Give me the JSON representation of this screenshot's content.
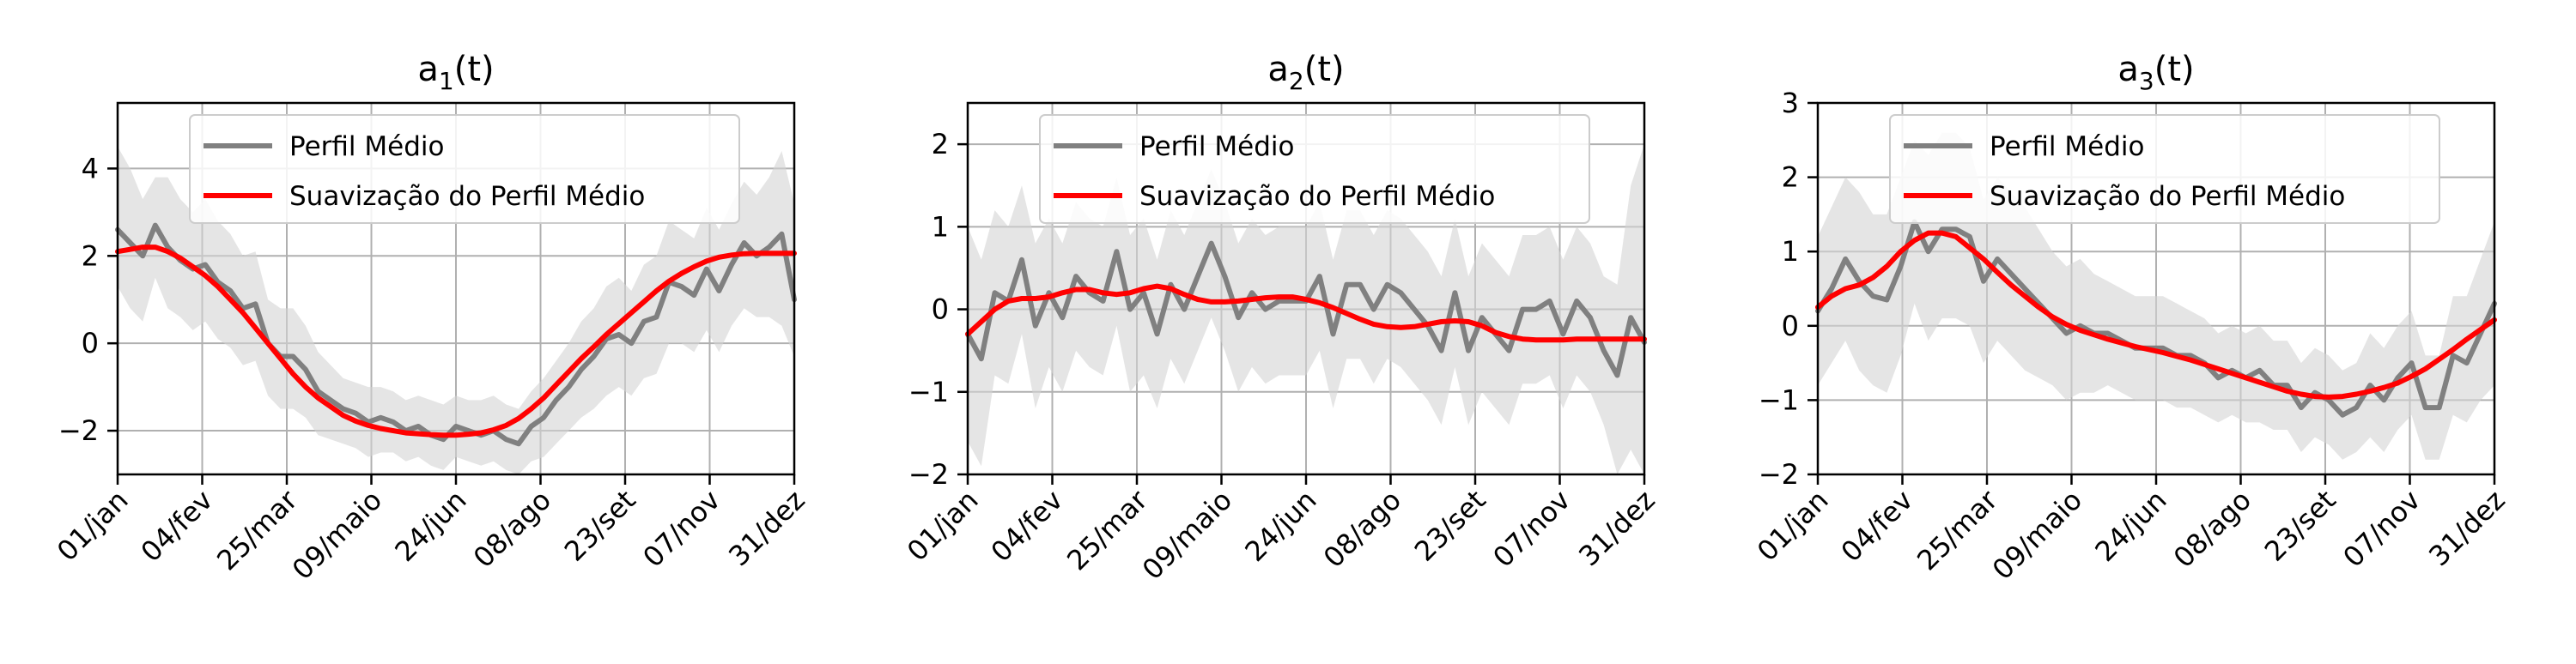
{
  "colors": {
    "mean": "#808080",
    "smooth": "#ff0000",
    "band": "#d3d3d3",
    "grid": "#b0b0b0",
    "legend_border": "#cccccc"
  },
  "chart_data": [
    {
      "type": "line",
      "title": "a",
      "title_sub": "1",
      "title_suffix": "(t)",
      "xticks": [
        "01/jan",
        "04/fev",
        "25/mar",
        "09/maio",
        "24/jun",
        "08/ago",
        "23/set",
        "07/nov",
        "31/dez"
      ],
      "xlim": [
        0,
        8
      ],
      "ylim": [
        -3,
        5.5
      ],
      "yticks": [
        -2,
        0,
        2,
        4
      ],
      "grid": true,
      "legend": "top-center",
      "series": [
        {
          "name": "Perfil Médio",
          "color": "#808080",
          "values": [
            2.6,
            2.3,
            2.0,
            2.7,
            2.2,
            1.9,
            1.7,
            1.8,
            1.4,
            1.2,
            0.8,
            0.9,
            0.0,
            -0.3,
            -0.3,
            -0.6,
            -1.1,
            -1.3,
            -1.5,
            -1.6,
            -1.8,
            -1.7,
            -1.8,
            -2.0,
            -1.9,
            -2.1,
            -2.2,
            -1.9,
            -2.0,
            -2.1,
            -2.0,
            -2.2,
            -2.3,
            -1.9,
            -1.7,
            -1.3,
            -1.0,
            -0.6,
            -0.3,
            0.1,
            0.2,
            0.0,
            0.5,
            0.6,
            1.4,
            1.3,
            1.1,
            1.7,
            1.2,
            1.8,
            2.3,
            2.0,
            2.2,
            2.5,
            1.0
          ]
        },
        {
          "name": "Suavização do Perfil Médio",
          "color": "#ff0000",
          "values": [
            2.1,
            2.15,
            2.2,
            2.2,
            2.1,
            1.95,
            1.75,
            1.55,
            1.3,
            1.0,
            0.7,
            0.35,
            0.0,
            -0.35,
            -0.7,
            -1.0,
            -1.25,
            -1.45,
            -1.65,
            -1.78,
            -1.88,
            -1.95,
            -2.0,
            -2.05,
            -2.07,
            -2.09,
            -2.1,
            -2.1,
            -2.08,
            -2.05,
            -1.98,
            -1.88,
            -1.72,
            -1.5,
            -1.25,
            -0.95,
            -0.65,
            -0.35,
            -0.08,
            0.2,
            0.45,
            0.7,
            0.95,
            1.2,
            1.42,
            1.6,
            1.75,
            1.88,
            1.97,
            2.02,
            2.05,
            2.06,
            2.06,
            2.06,
            2.06
          ]
        }
      ],
      "band_upper": [
        4.5,
        4.0,
        3.3,
        3.8,
        3.8,
        3.3,
        3.0,
        3.3,
        2.8,
        2.5,
        2.0,
        2.1,
        1.0,
        0.8,
        0.8,
        0.4,
        -0.2,
        -0.5,
        -0.8,
        -0.9,
        -1.0,
        -1.0,
        -1.1,
        -1.3,
        -1.2,
        -1.3,
        -1.4,
        -1.2,
        -1.3,
        -1.3,
        -1.2,
        -1.4,
        -1.5,
        -1.1,
        -0.8,
        -0.4,
        0.0,
        0.5,
        0.8,
        1.3,
        1.5,
        1.2,
        1.8,
        2.0,
        2.8,
        2.6,
        2.4,
        3.1,
        2.6,
        3.2,
        3.7,
        3.4,
        3.8,
        4.4,
        3.2
      ],
      "band_lower": [
        1.3,
        0.8,
        0.5,
        1.5,
        0.8,
        0.6,
        0.3,
        0.5,
        0.1,
        -0.1,
        -0.5,
        -0.4,
        -1.2,
        -1.5,
        -1.5,
        -1.7,
        -2.1,
        -2.2,
        -2.3,
        -2.4,
        -2.6,
        -2.5,
        -2.5,
        -2.7,
        -2.6,
        -2.8,
        -2.9,
        -2.6,
        -2.7,
        -2.8,
        -2.7,
        -2.9,
        -3.0,
        -2.7,
        -2.6,
        -2.3,
        -2.0,
        -1.7,
        -1.5,
        -1.2,
        -1.0,
        -1.2,
        -0.8,
        -0.7,
        0.0,
        0.0,
        -0.2,
        0.3,
        -0.2,
        0.4,
        0.8,
        0.6,
        0.6,
        0.4,
        -0.3
      ]
    },
    {
      "type": "line",
      "title": "a",
      "title_sub": "2",
      "title_suffix": "(t)",
      "xticks": [
        "01/jan",
        "04/fev",
        "25/mar",
        "09/maio",
        "24/jun",
        "08/ago",
        "23/set",
        "07/nov",
        "31/dez"
      ],
      "xlim": [
        0,
        8
      ],
      "ylim": [
        -2,
        2.5
      ],
      "yticks": [
        -2,
        -1,
        0,
        1,
        2
      ],
      "grid": true,
      "legend": "top-center",
      "series": [
        {
          "name": "Perfil Médio",
          "color": "#808080",
          "values": [
            -0.3,
            -0.6,
            0.2,
            0.1,
            0.6,
            -0.2,
            0.2,
            -0.1,
            0.4,
            0.2,
            0.1,
            0.7,
            0.0,
            0.2,
            -0.3,
            0.3,
            0.0,
            0.4,
            0.8,
            0.4,
            -0.1,
            0.2,
            0.0,
            0.1,
            0.1,
            0.1,
            0.4,
            -0.3,
            0.3,
            0.3,
            0.0,
            0.3,
            0.2,
            0.0,
            -0.2,
            -0.5,
            0.2,
            -0.5,
            -0.1,
            -0.3,
            -0.5,
            0.0,
            0.0,
            0.1,
            -0.3,
            0.1,
            -0.1,
            -0.5,
            -0.8,
            -0.1,
            -0.4
          ]
        },
        {
          "name": "Suavização do Perfil Médio",
          "color": "#ff0000",
          "values": [
            -0.3,
            -0.15,
            0.0,
            0.1,
            0.13,
            0.13,
            0.15,
            0.2,
            0.24,
            0.24,
            0.2,
            0.18,
            0.2,
            0.25,
            0.28,
            0.25,
            0.18,
            0.12,
            0.09,
            0.09,
            0.1,
            0.12,
            0.14,
            0.15,
            0.15,
            0.12,
            0.08,
            0.02,
            -0.05,
            -0.12,
            -0.18,
            -0.21,
            -0.22,
            -0.21,
            -0.18,
            -0.15,
            -0.14,
            -0.15,
            -0.2,
            -0.28,
            -0.33,
            -0.36,
            -0.37,
            -0.37,
            -0.37,
            -0.36,
            -0.36,
            -0.36,
            -0.36,
            -0.36,
            -0.36
          ]
        }
      ],
      "band_upper": [
        1.0,
        0.6,
        1.2,
        1.0,
        1.5,
        0.8,
        1.1,
        0.8,
        1.3,
        1.1,
        1.0,
        1.6,
        0.9,
        1.1,
        0.6,
        1.2,
        0.9,
        1.3,
        1.7,
        1.3,
        0.8,
        1.1,
        0.9,
        1.0,
        1.0,
        1.0,
        1.3,
        0.6,
        1.2,
        1.2,
        0.9,
        1.2,
        1.1,
        0.9,
        0.7,
        0.4,
        1.1,
        0.4,
        0.8,
        0.6,
        0.4,
        0.9,
        0.9,
        1.0,
        0.6,
        1.0,
        0.8,
        0.4,
        0.3,
        1.5,
        2.0
      ],
      "band_lower": [
        -1.6,
        -1.9,
        -0.8,
        -0.9,
        -0.3,
        -1.2,
        -0.7,
        -1.0,
        -0.5,
        -0.7,
        -0.8,
        -0.2,
        -1.0,
        -0.8,
        -1.2,
        -0.6,
        -0.9,
        -0.5,
        -0.1,
        -0.5,
        -1.0,
        -0.7,
        -0.9,
        -0.8,
        -0.8,
        -0.8,
        -0.5,
        -1.2,
        -0.6,
        -0.6,
        -0.9,
        -0.6,
        -0.7,
        -0.9,
        -1.1,
        -1.4,
        -0.7,
        -1.4,
        -1.0,
        -1.2,
        -1.4,
        -0.9,
        -0.9,
        -0.8,
        -1.2,
        -0.8,
        -1.0,
        -1.4,
        -2.0,
        -1.7,
        -2.0
      ]
    },
    {
      "type": "line",
      "title": "a",
      "title_sub": "3",
      "title_suffix": "(t)",
      "xticks": [
        "01/jan",
        "04/fev",
        "25/mar",
        "09/maio",
        "24/jun",
        "08/ago",
        "23/set",
        "07/nov",
        "31/dez"
      ],
      "xlim": [
        0,
        8
      ],
      "ylim": [
        -2,
        3
      ],
      "yticks": [
        -2,
        -1,
        0,
        1,
        2,
        3
      ],
      "grid": true,
      "legend": "top-center",
      "series": [
        {
          "name": "Perfil Médio",
          "color": "#808080",
          "values": [
            0.2,
            0.5,
            0.9,
            0.6,
            0.4,
            0.35,
            0.8,
            1.4,
            1.0,
            1.3,
            1.3,
            1.2,
            0.6,
            0.9,
            0.7,
            0.5,
            0.3,
            0.1,
            -0.1,
            0.0,
            -0.1,
            -0.1,
            -0.2,
            -0.3,
            -0.3,
            -0.3,
            -0.4,
            -0.4,
            -0.5,
            -0.7,
            -0.6,
            -0.7,
            -0.6,
            -0.8,
            -0.8,
            -1.1,
            -0.9,
            -1.0,
            -1.2,
            -1.1,
            -0.8,
            -1.0,
            -0.7,
            -0.5,
            -1.1,
            -1.1,
            -0.4,
            -0.5,
            -0.1,
            0.3
          ]
        },
        {
          "name": "Suavização do Perfil Médio",
          "color": "#ff0000",
          "values": [
            0.25,
            0.4,
            0.5,
            0.55,
            0.65,
            0.8,
            1.0,
            1.15,
            1.25,
            1.25,
            1.2,
            1.05,
            0.9,
            0.72,
            0.55,
            0.4,
            0.25,
            0.12,
            0.02,
            -0.06,
            -0.12,
            -0.18,
            -0.23,
            -0.28,
            -0.32,
            -0.36,
            -0.41,
            -0.46,
            -0.52,
            -0.58,
            -0.64,
            -0.7,
            -0.76,
            -0.82,
            -0.88,
            -0.92,
            -0.95,
            -0.96,
            -0.95,
            -0.92,
            -0.88,
            -0.83,
            -0.77,
            -0.68,
            -0.58,
            -0.45,
            -0.32,
            -0.18,
            -0.05,
            0.08
          ]
        }
      ],
      "band_upper": [
        1.2,
        1.6,
        2.0,
        1.8,
        1.5,
        1.5,
        2.0,
        2.5,
        2.3,
        2.6,
        2.6,
        2.4,
        1.7,
        2.0,
        1.8,
        1.6,
        1.3,
        1.0,
        0.8,
        0.9,
        0.7,
        0.6,
        0.5,
        0.4,
        0.4,
        0.4,
        0.3,
        0.2,
        0.1,
        -0.1,
        0.0,
        -0.1,
        0.0,
        -0.2,
        -0.2,
        -0.5,
        -0.3,
        -0.4,
        -0.6,
        -0.5,
        -0.1,
        -0.3,
        0.0,
        0.2,
        -0.4,
        -0.4,
        0.4,
        0.4,
        0.9,
        1.4
      ],
      "band_lower": [
        -0.8,
        -0.5,
        -0.2,
        -0.6,
        -0.8,
        -0.9,
        -0.4,
        0.3,
        -0.2,
        0.1,
        0.1,
        0.0,
        -0.5,
        -0.2,
        -0.4,
        -0.6,
        -0.7,
        -0.8,
        -1.0,
        -0.9,
        -0.9,
        -0.8,
        -0.9,
        -1.0,
        -1.0,
        -1.0,
        -1.1,
        -1.1,
        -1.2,
        -1.3,
        -1.2,
        -1.3,
        -1.3,
        -1.4,
        -1.4,
        -1.7,
        -1.5,
        -1.6,
        -1.8,
        -1.7,
        -1.5,
        -1.7,
        -1.4,
        -1.2,
        -1.8,
        -1.8,
        -1.2,
        -1.3,
        -1.0,
        -0.8
      ]
    }
  ]
}
